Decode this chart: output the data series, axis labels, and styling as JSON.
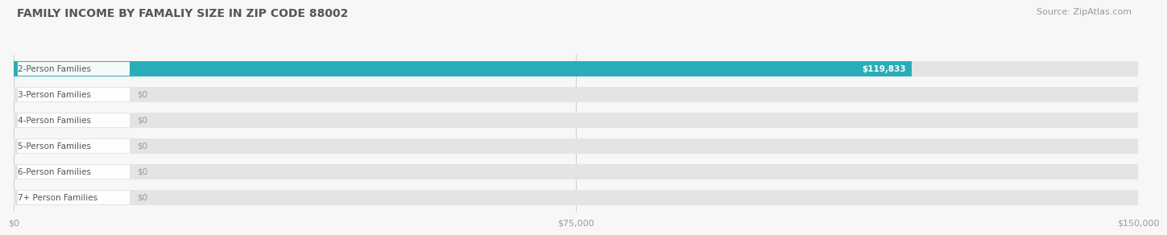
{
  "title": "FAMILY INCOME BY FAMALIY SIZE IN ZIP CODE 88002",
  "source": "Source: ZipAtlas.com",
  "categories": [
    "2-Person Families",
    "3-Person Families",
    "4-Person Families",
    "5-Person Families",
    "6-Person Families",
    "7+ Person Families"
  ],
  "values": [
    119833,
    0,
    0,
    0,
    0,
    0
  ],
  "bar_colors": [
    "#29adb8",
    "#9999cc",
    "#f07a8a",
    "#f5c88a",
    "#f09aaa",
    "#88b4dc"
  ],
  "value_labels": [
    "$119,833",
    "$0",
    "$0",
    "$0",
    "$0",
    "$0"
  ],
  "xlim": [
    0,
    150000
  ],
  "xticks": [
    0,
    75000,
    150000
  ],
  "xticklabels": [
    "$0",
    "$75,000",
    "$150,000"
  ],
  "background_color": "#f7f7f7",
  "bar_bg_color": "#e4e4e4",
  "title_fontsize": 10,
  "source_fontsize": 8,
  "label_fontsize": 7.5,
  "value_fontsize": 7.5
}
